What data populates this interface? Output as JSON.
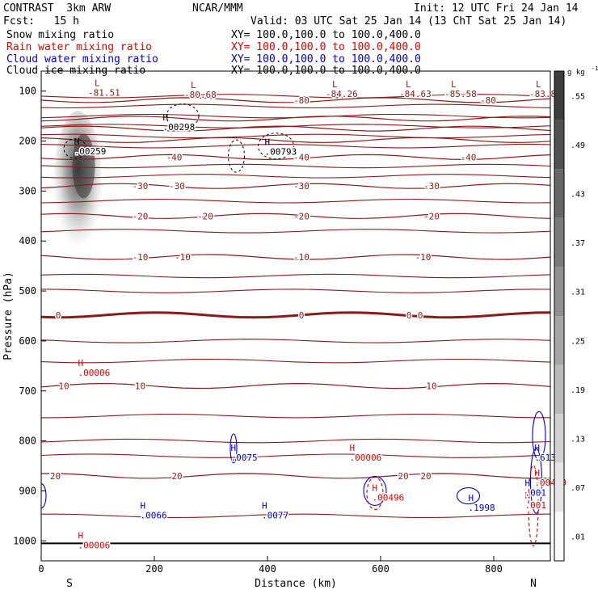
{
  "header": {
    "model": "CONTRAST  3km ARW",
    "org": "NCAR/MMM",
    "init": "Init: 12 UTC Fri 24 Jan 14",
    "fcst": "Fcst:   15 h",
    "valid": "Valid: 03 UTC Sat 25 Jan 14 (13 ChT Sat 25 Jan 14)"
  },
  "fields": [
    {
      "name": "Snow mixing ratio",
      "xy": "XY= 100.0,100.0 to 100.0,400.0",
      "color": "#000000"
    },
    {
      "name": "Rain water mixing ratio",
      "xy": "XY= 100.0,100.0 to 100.0,400.0",
      "color": "#dd0000"
    },
    {
      "name": "Cloud water mixing ratio",
      "xy": "XY= 100.0,100.0 to 100.0,400.0",
      "color": "#0000cc"
    },
    {
      "name": "Cloud ice mixing ratio",
      "xy": "XY= 100.0,100.0 to 100.0,400.0",
      "color": "#000000"
    }
  ],
  "chart_data": {
    "type": "cross-section",
    "xlabel": "Distance (km)",
    "ylabel": "Pressure (hPa)",
    "xlim": [
      0,
      900
    ],
    "ylim": [
      1040,
      60
    ],
    "x_ticks": [
      0,
      200,
      400,
      600,
      800
    ],
    "y_ticks": [
      100,
      200,
      300,
      400,
      500,
      600,
      700,
      800,
      900,
      1000
    ],
    "endpoints": {
      "left": "S",
      "right": "N"
    },
    "colorbar": {
      "unit": "g kg",
      "unit_exp": "-1",
      "ticks": [
        ".55",
        ".49",
        ".43",
        ".37",
        ".31",
        ".25",
        ".19",
        ".13",
        ".07",
        ".01"
      ]
    },
    "temperature_contours": [
      {
        "level": -80,
        "pressure": 118,
        "labels": [
          [
            460,
            "-80"
          ],
          [
            790,
            "-80"
          ]
        ]
      },
      {
        "level": -70,
        "pressure": 155,
        "labels": []
      },
      {
        "level": -60,
        "pressure": 175,
        "labels": []
      },
      {
        "level": -50,
        "pressure": 198,
        "labels": []
      },
      {
        "level": -40,
        "pressure": 232,
        "labels": [
          [
            235,
            "-40"
          ],
          [
            460,
            "-40"
          ],
          [
            755,
            "-40"
          ]
        ]
      },
      {
        "level": -30,
        "pressure": 290,
        "labels": [
          [
            175,
            "-30"
          ],
          [
            240,
            "-30"
          ],
          [
            460,
            "-30"
          ],
          [
            690,
            "-30"
          ]
        ]
      },
      {
        "level": -20,
        "pressure": 350,
        "labels": [
          [
            175,
            "-20"
          ],
          [
            290,
            "-20"
          ],
          [
            460,
            "-20"
          ],
          [
            690,
            "-20"
          ]
        ]
      },
      {
        "level": -10,
        "pressure": 432,
        "labels": [
          [
            175,
            "-10"
          ],
          [
            250,
            "-10"
          ],
          [
            460,
            "-10"
          ],
          [
            675,
            "-10"
          ]
        ]
      },
      {
        "level": 0,
        "pressure": 548,
        "labels": [
          [
            30,
            "0"
          ],
          [
            460,
            "0"
          ],
          [
            650,
            "0"
          ],
          [
            670,
            "0"
          ]
        ]
      },
      {
        "level": 10,
        "pressure": 690,
        "labels": [
          [
            40,
            "10"
          ],
          [
            175,
            "10"
          ],
          [
            690,
            "10"
          ]
        ]
      },
      {
        "level": 20,
        "pressure": 870,
        "labels": [
          [
            25,
            "20"
          ],
          [
            240,
            "20"
          ],
          [
            640,
            "20"
          ],
          [
            680,
            "20"
          ]
        ]
      }
    ],
    "temperature_lows": [
      {
        "x": 100,
        "p": 100,
        "value": "-81.51"
      },
      {
        "x": 270,
        "p": 104,
        "value": "-80.68"
      },
      {
        "x": 520,
        "p": 102,
        "value": "-84.26"
      },
      {
        "x": 650,
        "p": 102,
        "value": "-84.63"
      },
      {
        "x": 730,
        "p": 102,
        "value": "-85.58"
      },
      {
        "x": 880,
        "p": 102,
        "value": "-83.8"
      }
    ],
    "maxima": [
      {
        "field": "snow",
        "x": 58,
        "p": 217,
        "value": ".00259"
      },
      {
        "field": "snow",
        "x": 215,
        "p": 168,
        "value": ".00298"
      },
      {
        "field": "snow",
        "x": 395,
        "p": 218,
        "value": ".00793"
      },
      {
        "field": "rain",
        "x": 65,
        "p": 660,
        "value": ".00006"
      },
      {
        "field": "rain",
        "x": 545,
        "p": 830,
        "value": ".00006"
      },
      {
        "field": "rain",
        "x": 65,
        "p": 1005,
        "value": ".00006"
      },
      {
        "field": "rain",
        "x": 585,
        "p": 910,
        "value": ".00496"
      },
      {
        "field": "rain",
        "x": 872,
        "p": 880,
        "value": ".00489"
      },
      {
        "field": "rain",
        "x": 855,
        "p": 925,
        "value": ".001"
      },
      {
        "field": "cloud",
        "x": 335,
        "p": 830,
        "value": ".0075"
      },
      {
        "field": "cloud",
        "x": 175,
        "p": 945,
        "value": ".0066"
      },
      {
        "field": "cloud",
        "x": 390,
        "p": 945,
        "value": ".0077"
      },
      {
        "field": "cloud",
        "x": 755,
        "p": 930,
        "value": ".1998"
      },
      {
        "field": "cloud",
        "x": 872,
        "p": 830,
        "value": ".6132"
      },
      {
        "field": "cloud",
        "x": 855,
        "p": 900,
        "value": ".001"
      }
    ]
  }
}
